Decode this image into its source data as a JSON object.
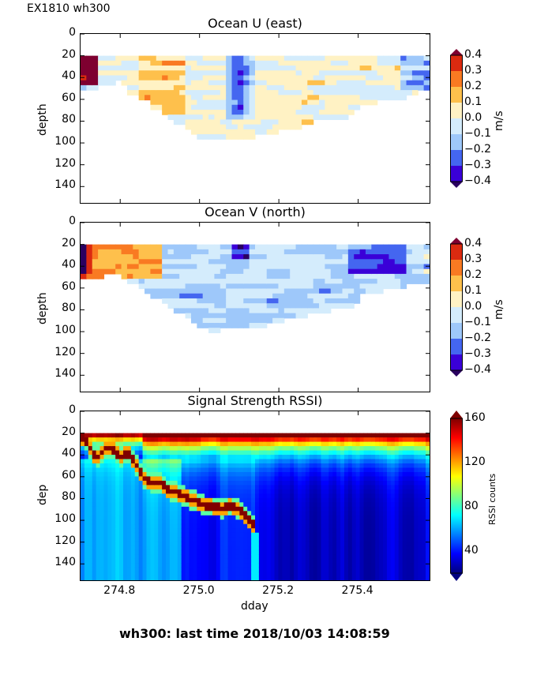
{
  "figure": {
    "label": "EX1810 wh300",
    "footer": "wh300: last time 2018/10/03 14:08:59"
  },
  "chart_data": [
    {
      "type": "heatmap",
      "title": "Ocean U (east)",
      "xlabel": "",
      "ylabel": "depth",
      "xlim": [
        274.7,
        275.58
      ],
      "ylim": [
        155,
        0
      ],
      "yticks": [
        "0",
        "20",
        "40",
        "60",
        "80",
        "100",
        "120",
        "140"
      ],
      "xticks": [
        274.8,
        275.0,
        275.2,
        275.4
      ],
      "xticklabels_visible": false,
      "colorbar": {
        "label": "m/s",
        "ticks": [
          "0.4",
          "0.3",
          "0.2",
          "0.1",
          "0.0",
          "−0.1",
          "−0.2",
          "−0.3",
          "−0.4"
        ],
        "levels": [
          -0.4,
          -0.3,
          -0.2,
          -0.1,
          0.0,
          0.1,
          0.2,
          0.3,
          0.4
        ],
        "colors": [
          "#3a00d8",
          "#4466f0",
          "#9ec8fa",
          "#d4ecfc",
          "#fff2c4",
          "#fec04c",
          "#f97a22",
          "#db2a10"
        ],
        "extend_colors": {
          "under": "#2a0060",
          "over": "#7e0030"
        }
      },
      "data_top_depth": 20,
      "bottom_profile_depth": [
        48,
        48,
        46,
        44,
        42,
        46,
        52,
        56,
        60,
        66,
        70,
        76,
        80,
        85,
        88,
        92,
        95,
        95,
        94,
        94,
        94,
        92,
        90,
        90,
        88,
        86,
        84,
        84,
        82,
        80,
        78,
        78,
        76,
        74,
        72,
        68,
        62,
        62,
        60,
        58,
        58,
        56,
        52,
        50,
        50
      ],
      "notes": "Mostly weak flow (-0.1 to 0.1); strong westward core near dday 275.1 at 20-70 m; eastward patches near 274.7-274.95"
    },
    {
      "type": "heatmap",
      "title": "Ocean V (north)",
      "xlabel": "",
      "ylabel": "depth",
      "xlim": [
        274.7,
        275.58
      ],
      "ylim": [
        155,
        0
      ],
      "yticks": [
        "0",
        "20",
        "40",
        "60",
        "80",
        "100",
        "120",
        "140"
      ],
      "xticks": [
        274.8,
        275.0,
        275.2,
        275.4
      ],
      "xticklabels_visible": false,
      "colorbar": {
        "label": "m/s",
        "ticks": [
          "0.4",
          "0.3",
          "0.2",
          "0.1",
          "0.0",
          "−0.1",
          "−0.2",
          "−0.3",
          "−0.4"
        ],
        "levels": [
          -0.4,
          -0.3,
          -0.2,
          -0.1,
          0.0,
          0.1,
          0.2,
          0.3,
          0.4
        ],
        "colors": [
          "#3a00d8",
          "#4466f0",
          "#9ec8fa",
          "#d4ecfc",
          "#fff2c4",
          "#fec04c",
          "#f97a22",
          "#db2a10"
        ],
        "extend_colors": {
          "under": "#2a0060",
          "over": "#7e0030"
        }
      },
      "data_top_depth": 20,
      "notes": "Northward near start (274.7-274.9); southward (-0.1 to -0.3) over most of record, strongest near 275.4-275.5 at 20-40 m"
    },
    {
      "type": "heatmap",
      "title": "Signal Strength RSSI)",
      "xlabel": "dday",
      "ylabel": "dep",
      "xlim": [
        274.7,
        275.58
      ],
      "ylim": [
        155,
        0
      ],
      "yticks": [
        "0",
        "20",
        "40",
        "60",
        "80",
        "100",
        "120",
        "140"
      ],
      "xticks": [
        274.8,
        275.0,
        275.2,
        275.4
      ],
      "xticklabels": [
        "274.8",
        "275.0",
        "275.2",
        "275.4"
      ],
      "colorbar": {
        "label": "RSSI counts",
        "ticks": [
          "160",
          "120",
          "80",
          "40"
        ],
        "range": [
          20,
          160
        ],
        "colormap": "jet"
      },
      "data_top_depth": 20,
      "bottom_echo_track": {
        "dday": [
          274.71,
          274.74,
          274.76,
          274.78,
          274.8,
          274.82,
          274.84,
          274.86,
          274.88,
          274.9,
          274.92,
          274.94,
          274.96,
          274.98,
          275.0,
          275.02,
          275.04,
          275.06,
          275.08,
          275.1,
          275.12,
          275.13,
          275.14
        ],
        "depth": [
          22,
          42,
          32,
          32,
          40,
          36,
          46,
          60,
          64,
          63,
          70,
          72,
          76,
          79,
          82,
          85,
          86,
          87,
          85,
          88,
          96,
          100,
          104
        ]
      },
      "notes": "High RSSI (120-150) in 20-40 m surface layer; bottom echo descending from ~20 m to ~105 m until dday ~275.14; low (~30-40) below"
    }
  ]
}
